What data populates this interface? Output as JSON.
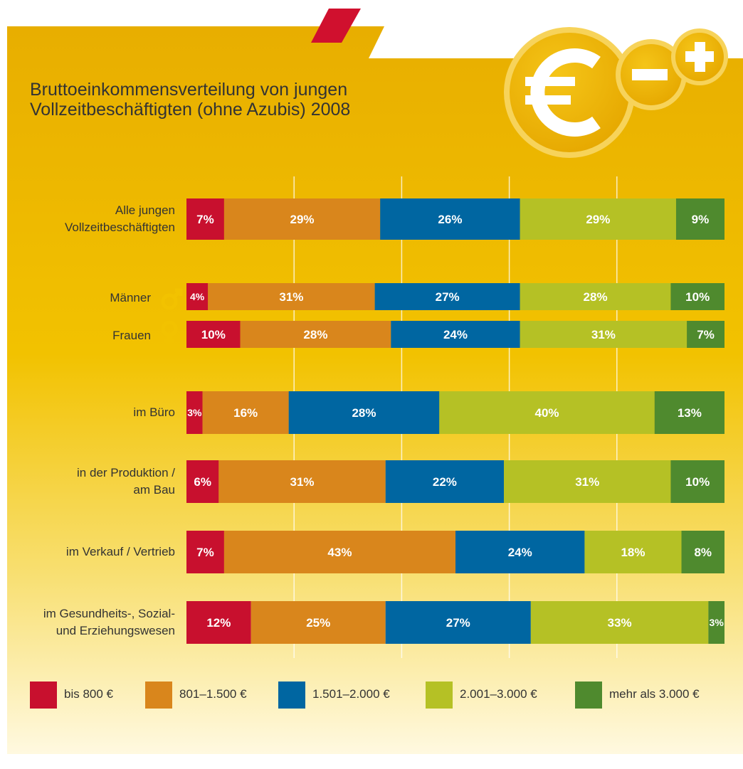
{
  "chart_data": {
    "type": "stacked_bar_horizontal",
    "title": "Bruttoeinkommensverteilung von jungen\nVollzeitbeschäftigten (ohne Azubis) 2008",
    "categories": [
      "Alle jungen\nVollzeitbeschäftigten",
      "Männer",
      "Frauen",
      "im Büro",
      "in der Produktion /\nam Bau",
      "im Verkauf / Vertrieb",
      "im Gesundheits-, Sozial-\nund Erziehungswesen"
    ],
    "series": [
      {
        "name": "bis 800 €",
        "color": "#c8102e",
        "values": [
          7,
          4,
          10,
          3,
          6,
          7,
          12
        ],
        "value_labels": [
          "7%",
          "4%",
          "10%",
          "3%",
          "6%",
          "7%",
          "12%"
        ]
      },
      {
        "name": "801–1.500 €",
        "color": "#d9861c",
        "values": [
          29,
          31,
          28,
          16,
          31,
          43,
          25
        ],
        "value_labels": [
          "29%",
          "31%",
          "28%",
          "16%",
          "31%",
          "43%",
          "25%"
        ]
      },
      {
        "name": "1.501–2.000 €",
        "color": "#0066a1",
        "values": [
          26,
          27,
          24,
          28,
          22,
          24,
          27
        ],
        "value_labels": [
          "26%",
          "27%",
          "24%",
          "28%",
          "22%",
          "24%",
          "27%"
        ]
      },
      {
        "name": "2.001–3.000 €",
        "color": "#b5c125",
        "values": [
          29,
          28,
          31,
          40,
          31,
          18,
          33
        ],
        "value_labels": [
          "29%",
          "28%",
          "31%",
          "40%",
          "31%",
          "18%",
          "33%"
        ]
      },
      {
        "name": "mehr als 3.000 €",
        "color": "#4f8a2e",
        "values": [
          9,
          10,
          7,
          13,
          10,
          8,
          3
        ],
        "value_labels": [
          "9%",
          "10%",
          "7%",
          "13%",
          "10%",
          "8%",
          "3%"
        ]
      }
    ],
    "xlim": [
      0,
      100
    ],
    "xticks": [
      20,
      40,
      60,
      80
    ],
    "grid": true
  }
}
